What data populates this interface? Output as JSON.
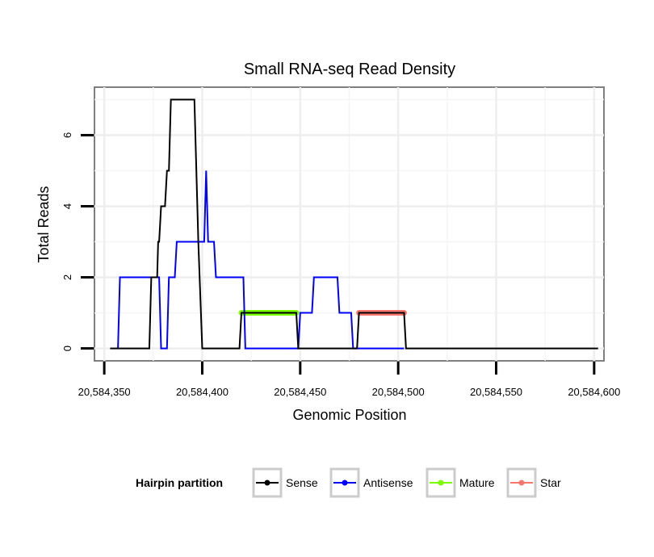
{
  "chart_data": {
    "type": "line",
    "title": "Small RNA-seq Read Density",
    "xlabel": "Genomic Position",
    "ylabel": "Total Reads",
    "xlim": [
      20584345,
      20584605
    ],
    "ylim": [
      -0.35,
      7.35
    ],
    "x_ticks": [
      20584350,
      20584400,
      20584450,
      20584500,
      20584550,
      20584600
    ],
    "x_tick_labels": [
      "20,584,350",
      "20,584,400",
      "20,584,450",
      "20,584,500",
      "20,584,550",
      "20,584,600"
    ],
    "y_ticks": [
      0,
      2,
      4,
      6
    ],
    "y_tick_labels": [
      "0",
      "2",
      "4",
      "6"
    ],
    "grid": true,
    "legend": {
      "title": "Hairpin partition",
      "position": "bottom",
      "entries": [
        "Sense",
        "Antisense",
        "Mature",
        "Star"
      ]
    },
    "series": [
      {
        "name": "Sense",
        "color": "#000000",
        "points": [
          [
            20584353,
            0
          ],
          [
            20584373,
            0
          ],
          [
            20584374,
            2
          ],
          [
            20584377,
            2
          ],
          [
            20584377.5,
            3
          ],
          [
            20584378,
            3
          ],
          [
            20584379,
            4
          ],
          [
            20584381,
            4
          ],
          [
            20584382,
            5
          ],
          [
            20584383,
            5
          ],
          [
            20584384,
            7
          ],
          [
            20584396,
            7
          ],
          [
            20584398,
            3
          ],
          [
            20584400,
            0
          ],
          [
            20584419,
            0
          ],
          [
            20584420,
            1
          ],
          [
            20584448,
            1
          ],
          [
            20584449,
            0
          ],
          [
            20584479,
            0
          ],
          [
            20584480,
            1
          ],
          [
            20584503,
            1
          ],
          [
            20584504,
            0
          ],
          [
            20584602,
            0
          ]
        ]
      },
      {
        "name": "Antisense",
        "color": "#0000ff",
        "points": [
          [
            20584357,
            0
          ],
          [
            20584358,
            2
          ],
          [
            20584378,
            2
          ],
          [
            20584379,
            0
          ],
          [
            20584382,
            0
          ],
          [
            20584383,
            2
          ],
          [
            20584386,
            2
          ],
          [
            20584387,
            3
          ],
          [
            20584401,
            3
          ],
          [
            20584402,
            5
          ],
          [
            20584403,
            3
          ],
          [
            20584406,
            3
          ],
          [
            20584407,
            2
          ],
          [
            20584421,
            2
          ],
          [
            20584422,
            0
          ],
          [
            20584449,
            0
          ],
          [
            20584450,
            1
          ],
          [
            20584456,
            1
          ],
          [
            20584457,
            2
          ],
          [
            20584469,
            2
          ],
          [
            20584470,
            1
          ],
          [
            20584476,
            1
          ],
          [
            20584477,
            0
          ],
          [
            20584503,
            0
          ]
        ]
      },
      {
        "name": "Mature",
        "color": "#7cfc00",
        "points": [
          [
            20584420,
            1
          ],
          [
            20584448,
            1
          ]
        ]
      },
      {
        "name": "Star",
        "color": "#f8766d",
        "points": [
          [
            20584480,
            1
          ],
          [
            20584503,
            1
          ]
        ]
      }
    ]
  }
}
